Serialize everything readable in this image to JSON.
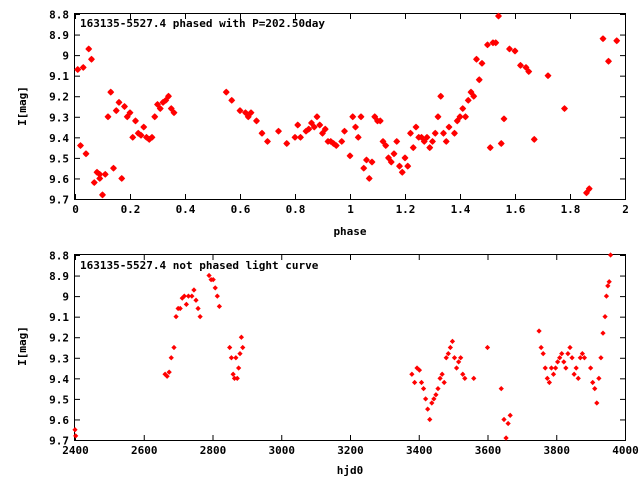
{
  "chart_data": [
    {
      "type": "scatter",
      "title": "163135-5527.4 phased with P=202.50day",
      "xlabel": "phase",
      "ylabel": "I[mag]",
      "xlim": [
        0,
        2
      ],
      "ylim": [
        8.8,
        9.7
      ],
      "y_inverted": true,
      "grid": false,
      "marker": "star",
      "color": "#ff0000",
      "xticks": [
        "0",
        "0.2",
        "0.4",
        "0.6",
        "0.8",
        "1",
        "1.2",
        "1.4",
        "1.6",
        "1.8",
        "2"
      ],
      "yticks": [
        "8.8",
        "8.9",
        "9",
        "9.1",
        "9.2",
        "9.3",
        "9.4",
        "9.5",
        "9.6",
        "9.7"
      ],
      "points": [
        [
          0.01,
          9.07
        ],
        [
          0.02,
          9.44
        ],
        [
          0.03,
          9.06
        ],
        [
          0.04,
          9.48
        ],
        [
          0.05,
          8.97
        ],
        [
          0.06,
          9.02
        ],
        [
          0.07,
          9.62
        ],
        [
          0.08,
          9.57
        ],
        [
          0.09,
          9.6
        ],
        [
          0.09,
          9.58
        ],
        [
          0.1,
          9.68
        ],
        [
          0.11,
          9.58
        ],
        [
          0.12,
          9.3
        ],
        [
          0.13,
          9.18
        ],
        [
          0.14,
          9.55
        ],
        [
          0.15,
          9.27
        ],
        [
          0.16,
          9.23
        ],
        [
          0.17,
          9.6
        ],
        [
          0.18,
          9.25
        ],
        [
          0.19,
          9.3
        ],
        [
          0.2,
          9.28
        ],
        [
          0.21,
          9.4
        ],
        [
          0.22,
          9.32
        ],
        [
          0.23,
          9.38
        ],
        [
          0.24,
          9.39
        ],
        [
          0.25,
          9.35
        ],
        [
          0.26,
          9.4
        ],
        [
          0.27,
          9.41
        ],
        [
          0.28,
          9.4
        ],
        [
          0.29,
          9.3
        ],
        [
          0.3,
          9.24
        ],
        [
          0.31,
          9.26
        ],
        [
          0.32,
          9.23
        ],
        [
          0.33,
          9.22
        ],
        [
          0.34,
          9.2
        ],
        [
          0.35,
          9.26
        ],
        [
          0.36,
          9.28
        ],
        [
          0.55,
          9.18
        ],
        [
          0.57,
          9.22
        ],
        [
          0.6,
          9.27
        ],
        [
          0.62,
          9.28
        ],
        [
          0.63,
          9.3
        ],
        [
          0.64,
          9.28
        ],
        [
          0.66,
          9.32
        ],
        [
          0.68,
          9.38
        ],
        [
          0.7,
          9.42
        ],
        [
          0.74,
          9.37
        ],
        [
          0.77,
          9.43
        ],
        [
          0.8,
          9.4
        ],
        [
          0.81,
          9.34
        ],
        [
          0.82,
          9.4
        ],
        [
          0.84,
          9.37
        ],
        [
          0.85,
          9.36
        ],
        [
          0.86,
          9.33
        ],
        [
          0.87,
          9.35
        ],
        [
          0.88,
          9.3
        ],
        [
          0.89,
          9.34
        ],
        [
          0.9,
          9.38
        ],
        [
          0.91,
          9.36
        ],
        [
          0.92,
          9.42
        ],
        [
          0.93,
          9.42
        ],
        [
          0.94,
          9.43
        ],
        [
          0.95,
          9.44
        ],
        [
          0.97,
          9.42
        ],
        [
          0.98,
          9.37
        ],
        [
          1.0,
          9.49
        ],
        [
          1.01,
          9.3
        ],
        [
          1.02,
          9.35
        ],
        [
          1.03,
          9.4
        ],
        [
          1.04,
          9.3
        ],
        [
          1.05,
          9.55
        ],
        [
          1.06,
          9.51
        ],
        [
          1.07,
          9.6
        ],
        [
          1.08,
          9.52
        ],
        [
          1.09,
          9.3
        ],
        [
          1.1,
          9.32
        ],
        [
          1.11,
          9.32
        ],
        [
          1.12,
          9.42
        ],
        [
          1.13,
          9.44
        ],
        [
          1.14,
          9.5
        ],
        [
          1.15,
          9.52
        ],
        [
          1.16,
          9.48
        ],
        [
          1.17,
          9.42
        ],
        [
          1.18,
          9.54
        ],
        [
          1.19,
          9.57
        ],
        [
          1.2,
          9.5
        ],
        [
          1.21,
          9.54
        ],
        [
          1.22,
          9.38
        ],
        [
          1.23,
          9.45
        ],
        [
          1.24,
          9.35
        ],
        [
          1.25,
          9.4
        ],
        [
          1.26,
          9.4
        ],
        [
          1.27,
          9.42
        ],
        [
          1.28,
          9.4
        ],
        [
          1.29,
          9.45
        ],
        [
          1.3,
          9.42
        ],
        [
          1.31,
          9.38
        ],
        [
          1.32,
          9.3
        ],
        [
          1.33,
          9.2
        ],
        [
          1.34,
          9.38
        ],
        [
          1.35,
          9.42
        ],
        [
          1.36,
          9.35
        ],
        [
          1.38,
          9.38
        ],
        [
          1.39,
          9.32
        ],
        [
          1.4,
          9.3
        ],
        [
          1.41,
          9.26
        ],
        [
          1.42,
          9.3
        ],
        [
          1.43,
          9.22
        ],
        [
          1.44,
          9.18
        ],
        [
          1.45,
          9.2
        ],
        [
          1.46,
          9.02
        ],
        [
          1.47,
          9.12
        ],
        [
          1.48,
          9.04
        ],
        [
          1.5,
          8.95
        ],
        [
          1.51,
          9.45
        ],
        [
          1.52,
          8.94
        ],
        [
          1.53,
          8.94
        ],
        [
          1.54,
          8.81
        ],
        [
          1.55,
          9.43
        ],
        [
          1.56,
          9.31
        ],
        [
          1.58,
          8.97
        ],
        [
          1.6,
          8.98
        ],
        [
          1.62,
          9.05
        ],
        [
          1.64,
          9.06
        ],
        [
          1.65,
          9.08
        ],
        [
          1.67,
          9.41
        ],
        [
          1.72,
          9.1
        ],
        [
          1.78,
          9.26
        ],
        [
          1.86,
          9.67
        ],
        [
          1.87,
          9.65
        ],
        [
          1.92,
          8.92
        ],
        [
          1.94,
          9.03
        ],
        [
          1.97,
          8.93
        ]
      ]
    },
    {
      "type": "scatter",
      "title": "163135-5527.4 not phased light curve",
      "xlabel": "hjd0",
      "ylabel": "I[mag]",
      "xlim": [
        2400,
        4000
      ],
      "ylim": [
        8.8,
        9.7
      ],
      "y_inverted": true,
      "grid": false,
      "marker": "diamond",
      "color": "#ff0000",
      "xticks": [
        "2400",
        "2600",
        "2800",
        "3000",
        "3200",
        "3400",
        "3600",
        "3800",
        "4000"
      ],
      "yticks": [
        "8.8",
        "8.9",
        "9",
        "9.1",
        "9.2",
        "9.3",
        "9.4",
        "9.5",
        "9.6",
        "9.7"
      ],
      "points": [
        [
          2400,
          9.65
        ],
        [
          2402,
          9.68
        ],
        [
          2662,
          9.38
        ],
        [
          2668,
          9.39
        ],
        [
          2674,
          9.37
        ],
        [
          2680,
          9.3
        ],
        [
          2688,
          9.25
        ],
        [
          2694,
          9.1
        ],
        [
          2700,
          9.06
        ],
        [
          2706,
          9.06
        ],
        [
          2712,
          9.01
        ],
        [
          2718,
          9.0
        ],
        [
          2724,
          9.04
        ],
        [
          2730,
          9.0
        ],
        [
          2740,
          9.0
        ],
        [
          2746,
          8.97
        ],
        [
          2752,
          9.02
        ],
        [
          2758,
          9.06
        ],
        [
          2764,
          9.1
        ],
        [
          2790,
          8.9
        ],
        [
          2796,
          8.92
        ],
        [
          2802,
          8.92
        ],
        [
          2808,
          8.96
        ],
        [
          2814,
          9.0
        ],
        [
          2820,
          9.05
        ],
        [
          2850,
          9.25
        ],
        [
          2855,
          9.3
        ],
        [
          2860,
          9.38
        ],
        [
          2864,
          9.4
        ],
        [
          2868,
          9.3
        ],
        [
          2872,
          9.4
        ],
        [
          2876,
          9.35
        ],
        [
          2880,
          9.28
        ],
        [
          2884,
          9.2
        ],
        [
          2888,
          9.25
        ],
        [
          3380,
          9.38
        ],
        [
          3388,
          9.42
        ],
        [
          3395,
          9.35
        ],
        [
          3402,
          9.36
        ],
        [
          3408,
          9.42
        ],
        [
          3414,
          9.45
        ],
        [
          3420,
          9.5
        ],
        [
          3426,
          9.55
        ],
        [
          3432,
          9.6
        ],
        [
          3438,
          9.52
        ],
        [
          3444,
          9.5
        ],
        [
          3450,
          9.48
        ],
        [
          3456,
          9.45
        ],
        [
          3462,
          9.4
        ],
        [
          3468,
          9.38
        ],
        [
          3474,
          9.42
        ],
        [
          3480,
          9.3
        ],
        [
          3486,
          9.28
        ],
        [
          3492,
          9.25
        ],
        [
          3498,
          9.22
        ],
        [
          3504,
          9.3
        ],
        [
          3510,
          9.35
        ],
        [
          3516,
          9.32
        ],
        [
          3522,
          9.3
        ],
        [
          3528,
          9.38
        ],
        [
          3534,
          9.4
        ],
        [
          3560,
          9.4
        ],
        [
          3600,
          9.25
        ],
        [
          3640,
          9.45
        ],
        [
          3648,
          9.6
        ],
        [
          3654,
          9.69
        ],
        [
          3660,
          9.62
        ],
        [
          3666,
          9.58
        ],
        [
          3750,
          9.17
        ],
        [
          3756,
          9.25
        ],
        [
          3762,
          9.28
        ],
        [
          3768,
          9.35
        ],
        [
          3774,
          9.4
        ],
        [
          3780,
          9.42
        ],
        [
          3786,
          9.35
        ],
        [
          3792,
          9.38
        ],
        [
          3798,
          9.35
        ],
        [
          3804,
          9.32
        ],
        [
          3810,
          9.3
        ],
        [
          3816,
          9.28
        ],
        [
          3822,
          9.32
        ],
        [
          3828,
          9.35
        ],
        [
          3834,
          9.28
        ],
        [
          3840,
          9.25
        ],
        [
          3846,
          9.3
        ],
        [
          3852,
          9.38
        ],
        [
          3858,
          9.35
        ],
        [
          3864,
          9.4
        ],
        [
          3870,
          9.3
        ],
        [
          3876,
          9.28
        ],
        [
          3882,
          9.3
        ],
        [
          3900,
          9.35
        ],
        [
          3906,
          9.42
        ],
        [
          3912,
          9.45
        ],
        [
          3918,
          9.52
        ],
        [
          3924,
          9.4
        ],
        [
          3930,
          9.3
        ],
        [
          3936,
          9.18
        ],
        [
          3942,
          9.1
        ],
        [
          3946,
          9.0
        ],
        [
          3950,
          8.95
        ],
        [
          3954,
          8.93
        ],
        [
          3958,
          8.8
        ]
      ]
    }
  ]
}
